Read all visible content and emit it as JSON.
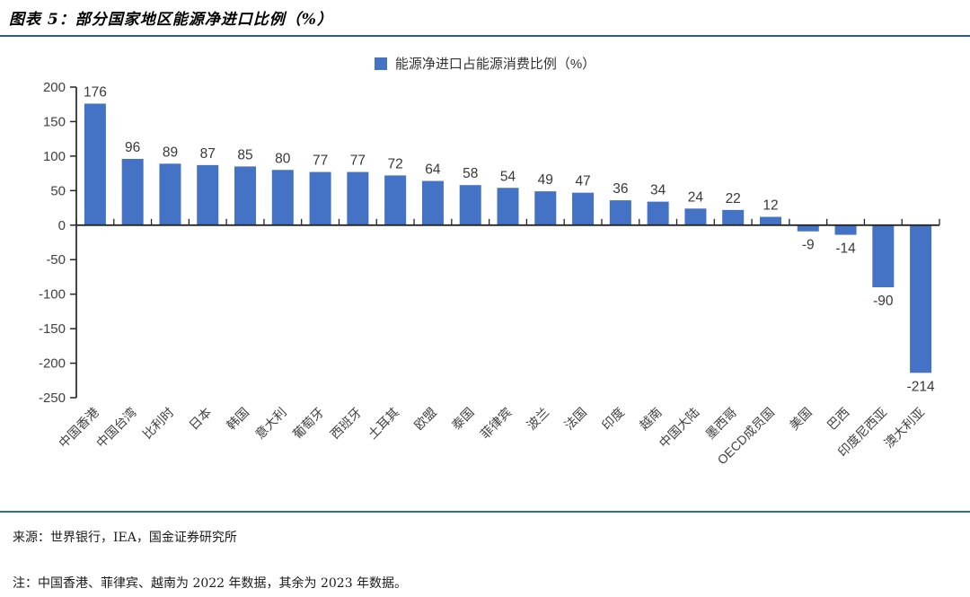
{
  "figure": {
    "title": "图表 5：部分国家地区能源净进口比例（%）"
  },
  "chart_data": {
    "type": "bar",
    "title": "部分国家地区能源净进口比例（%）",
    "legend": [
      "能源净进口占能源消费比例（%）"
    ],
    "categories": [
      "中国香港",
      "中国台湾",
      "比利时",
      "日本",
      "韩国",
      "意大利",
      "葡萄牙",
      "西班牙",
      "土耳其",
      "欧盟",
      "泰国",
      "菲律宾",
      "波兰",
      "法国",
      "印度",
      "越南",
      "中国大陆",
      "墨西哥",
      "OECD成员国",
      "美国",
      "巴西",
      "印度尼西亚",
      "澳大利亚"
    ],
    "values": [
      176,
      96,
      89,
      87,
      85,
      80,
      77,
      77,
      72,
      64,
      58,
      54,
      49,
      47,
      36,
      34,
      24,
      22,
      12,
      -9,
      -14,
      -90,
      -214
    ],
    "xlabel": "",
    "ylabel": "",
    "ylim": [
      -250,
      200
    ],
    "ytick_step": 50,
    "yticks": [
      200,
      150,
      100,
      50,
      0,
      -50,
      -100,
      -150,
      -200,
      -250
    ],
    "grid": false,
    "legend_position": "top-center",
    "data_labels": true,
    "category_label_rotation_deg": 45,
    "colors": {
      "bar": "#4472c4",
      "axis": "#262626",
      "tick_text": "#404040",
      "value_text": "#383838",
      "title_rule": "#1f5c99",
      "footer_rule": "#31708e"
    }
  },
  "footer": {
    "source": "来源：世界银行，IEA，国金证券研究所",
    "note": "注：中国香港、菲律宾、越南为 2022 年数据，其余为 2023 年数据。"
  }
}
